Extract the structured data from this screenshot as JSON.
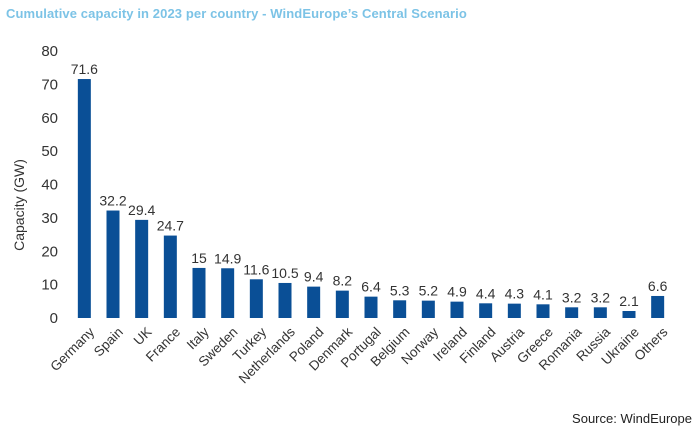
{
  "title": "Cumulative capacity in 2023 per country - WindEurope’s Central Scenario",
  "source": "Source: WindEurope",
  "colors": {
    "bar": "#0a4f96",
    "title": "#7cc3e6"
  },
  "chart_data": {
    "type": "bar",
    "title": "Cumulative capacity in 2023 per country - WindEurope’s Central Scenario",
    "xlabel": "",
    "ylabel": "Capacity (GW)",
    "ylim": [
      0,
      80
    ],
    "yticks": [
      0,
      10,
      20,
      30,
      40,
      50,
      60,
      70,
      80
    ],
    "grid": false,
    "categories": [
      "Germany",
      "Spain",
      "UK",
      "France",
      "Italy",
      "Sweden",
      "Turkey",
      "Netherlands",
      "Poland",
      "Denmark",
      "Portugal",
      "Belgium",
      "Norway",
      "Ireland",
      "Finland",
      "Austria",
      "Greece",
      "Romania",
      "Russia",
      "Ukraine",
      "Others"
    ],
    "values": [
      71.6,
      32.2,
      29.4,
      24.7,
      15,
      14.9,
      11.6,
      10.5,
      9.4,
      8.2,
      6.4,
      5.3,
      5.2,
      4.9,
      4.4,
      4.3,
      4.1,
      3.2,
      3.2,
      2.1,
      6.6
    ],
    "data_labels": [
      "71.6",
      "32.2",
      "29.4",
      "24.7",
      "15",
      "14.9",
      "11.6",
      "10.5",
      "9.4",
      "8.2",
      "6.4",
      "5.3",
      "5.2",
      "4.9",
      "4.4",
      "4.3",
      "4.1",
      "3.2",
      "3.2",
      "2.1",
      "6.6"
    ]
  }
}
